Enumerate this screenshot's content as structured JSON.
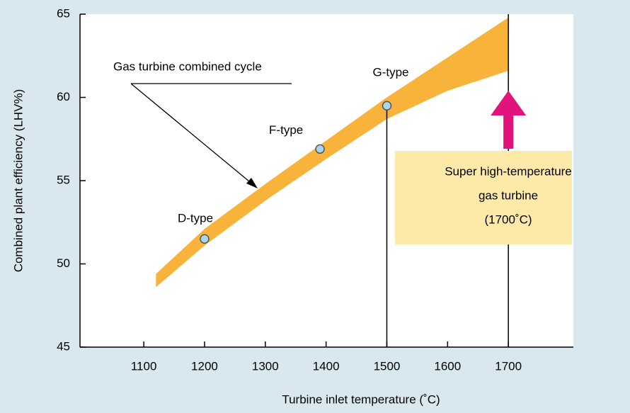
{
  "chart_data": {
    "type": "band",
    "xlabel": "Turbine inlet temperature (˚C)",
    "ylabel": "Combined plant efficiency (LHV%)",
    "x": [
      1120,
      1200,
      1300,
      1400,
      1500,
      1600,
      1700
    ],
    "upper": [
      49.4,
      52.1,
      54.8,
      57.4,
      60.0,
      62.4,
      64.8
    ],
    "lower": [
      48.6,
      51.1,
      53.8,
      56.3,
      58.7,
      60.4,
      61.6
    ],
    "color": "#f8b43a",
    "band_label": "Gas turbine combined cycle",
    "points": [
      {
        "label": "D-type",
        "x": 1200,
        "y": 51.5
      },
      {
        "label": "F-type",
        "x": 1390,
        "y": 56.9
      },
      {
        "label": "G-type",
        "x": 1500,
        "y": 59.5
      }
    ],
    "annotation": {
      "x": 1700,
      "lines": [
        "Super high-temperature",
        "gas turbine",
        "(1700˚C)"
      ]
    },
    "xlim": [
      995,
      1807
    ],
    "ylim": [
      45,
      65
    ],
    "xticks": [
      1100,
      1200,
      1300,
      1400,
      1500,
      1600,
      1700
    ],
    "yticks": [
      45,
      50,
      55,
      60,
      65
    ]
  }
}
